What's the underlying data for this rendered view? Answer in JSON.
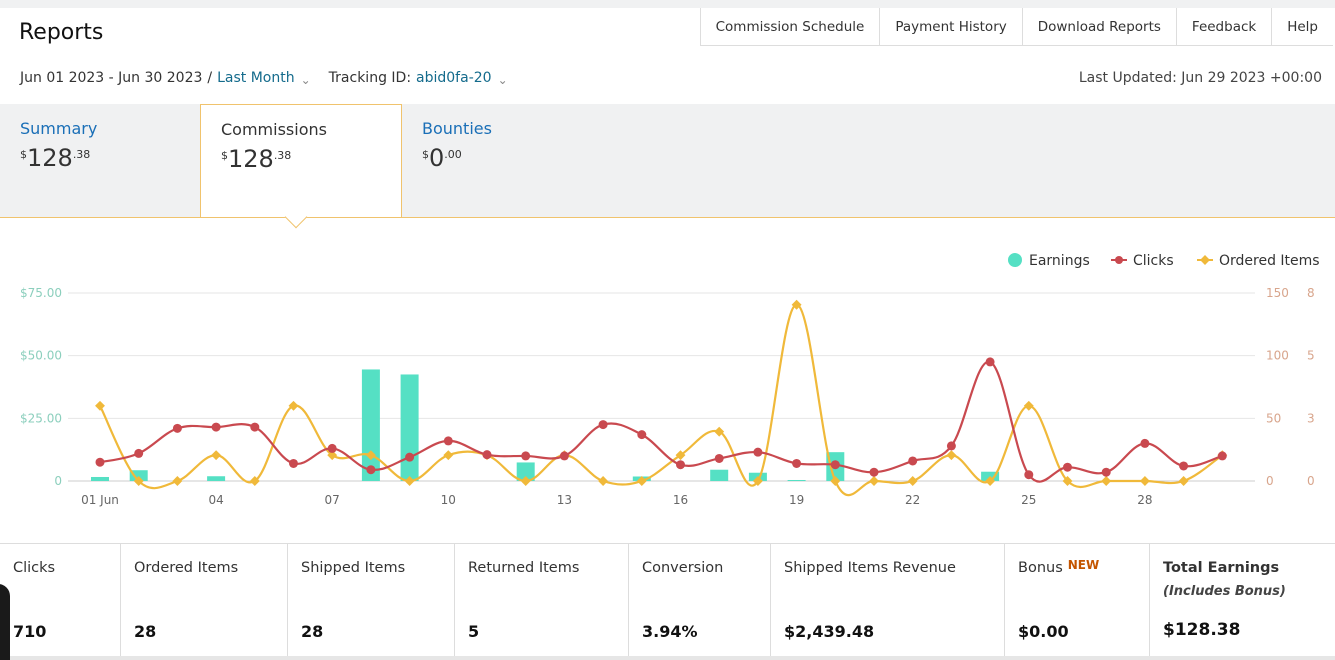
{
  "header": {
    "title": "Reports",
    "nav": [
      "Commission Schedule",
      "Payment History",
      "Download Reports",
      "Feedback",
      "Help"
    ],
    "date_range": "Jun 01 2023 - Jun 30 2023",
    "separator": "/",
    "range_preset": "Last Month",
    "tracking_label": "Tracking ID:",
    "tracking_id": "abid0fa-20",
    "last_updated": "Last Updated: Jun 29 2023 +00:00"
  },
  "tabs": {
    "summary": {
      "label": "Summary",
      "currency": "$",
      "whole": "128",
      "cents": ".38"
    },
    "commissions": {
      "label": "Commissions",
      "currency": "$",
      "whole": "128",
      "cents": ".38"
    },
    "bounties": {
      "label": "Bounties",
      "currency": "$",
      "whole": "0",
      "cents": ".00"
    }
  },
  "chart_data": {
    "type": "line",
    "legend": [
      "Earnings",
      "Clicks",
      "Ordered Items"
    ],
    "legend_placement": "top-right",
    "x_tick_labels": [
      "01 Jun",
      "04",
      "07",
      "10",
      "13",
      "16",
      "19",
      "22",
      "25",
      "28"
    ],
    "x_tick_days": [
      1,
      4,
      7,
      10,
      13,
      16,
      19,
      22,
      25,
      28
    ],
    "days": [
      1,
      2,
      3,
      4,
      5,
      6,
      7,
      8,
      9,
      10,
      11,
      12,
      13,
      14,
      15,
      16,
      17,
      18,
      19,
      20,
      21,
      22,
      23,
      24,
      25,
      26,
      27,
      28,
      29,
      30
    ],
    "y_left_ticks": [
      "$75.00",
      "$50.00",
      "$25.00",
      "0"
    ],
    "y_left_range": [
      0,
      75
    ],
    "y_clicks_ticks": [
      "150",
      "100",
      "50",
      "0"
    ],
    "y_clicks_range": [
      0,
      150
    ],
    "y_items_ticks": [
      "8",
      "5",
      "3",
      "0"
    ],
    "y_items_range": [
      0,
      8
    ],
    "grid": true,
    "colors": {
      "earnings": "#55e0c4",
      "clicks": "#c9494f",
      "ordered": "#f0b93a",
      "left_axis": "#8ccfbd",
      "right_axis": "#d8a58c"
    },
    "series": [
      {
        "name": "Earnings",
        "kind": "bar",
        "values": [
          1.6,
          4.3,
          0,
          1.9,
          0,
          0,
          0,
          44.5,
          42.5,
          0,
          0,
          7.4,
          0,
          0,
          1.8,
          0,
          4.5,
          3.3,
          0.4,
          11.5,
          0,
          0,
          0,
          3.7,
          0,
          0,
          0,
          0,
          0,
          0
        ]
      },
      {
        "name": "Clicks",
        "kind": "line",
        "values": [
          15,
          22,
          42,
          43,
          43,
          14,
          26,
          9,
          19,
          32,
          21,
          20,
          20,
          45,
          37,
          13,
          18,
          23,
          14,
          13,
          7,
          16,
          28,
          95,
          5,
          11,
          7,
          30,
          12,
          20
        ]
      },
      {
        "name": "Ordered Items",
        "kind": "line",
        "values": [
          3.2,
          0,
          0,
          1.1,
          0,
          3.2,
          1.1,
          1.1,
          0,
          1.1,
          1.1,
          0,
          1.1,
          0,
          0,
          1.1,
          2.1,
          0,
          7.5,
          0,
          0,
          0,
          1.1,
          0,
          3.2,
          0,
          0,
          0,
          0,
          1.1
        ]
      }
    ]
  },
  "stats": [
    {
      "label": "Clicks",
      "value": "710"
    },
    {
      "label": "Ordered Items",
      "value": "28"
    },
    {
      "label": "Shipped Items",
      "value": "28"
    },
    {
      "label": "Returned Items",
      "value": "5"
    },
    {
      "label": "Conversion",
      "value": "3.94%"
    },
    {
      "label": "Shipped Items Revenue",
      "value": "$2,439.48"
    },
    {
      "label": "Bonus",
      "badge": "NEW",
      "value": "$0.00"
    },
    {
      "label": "Total Earnings",
      "sublabel": "(Includes Bonus)",
      "value": "$128.38"
    }
  ]
}
